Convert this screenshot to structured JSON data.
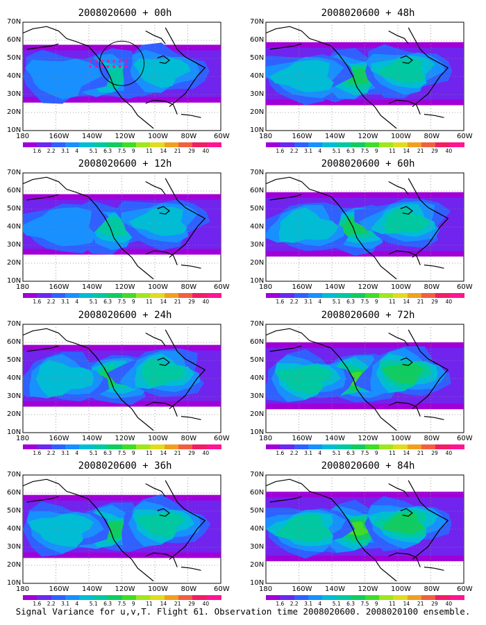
{
  "panels": [
    {
      "id": "p00",
      "title": "2008020600 + 00h",
      "intensity": 0.35
    },
    {
      "id": "p48",
      "title": "2008020600 + 48h",
      "intensity": 0.55
    },
    {
      "id": "p12",
      "title": "2008020600 + 12h",
      "intensity": 0.45
    },
    {
      "id": "p60",
      "title": "2008020600 + 60h",
      "intensity": 0.6
    },
    {
      "id": "p24",
      "title": "2008020600 + 24h",
      "intensity": 0.5
    },
    {
      "id": "p72",
      "title": "2008020600 + 72h",
      "intensity": 0.7
    },
    {
      "id": "p36",
      "title": "2008020600 + 36h",
      "intensity": 0.55
    },
    {
      "id": "p84",
      "title": "2008020600 + 84h",
      "intensity": 0.8
    }
  ],
  "lat_labels": [
    "70N",
    "60N",
    "50N",
    "40N",
    "30N",
    "20N",
    "10N"
  ],
  "lon_labels": [
    "180",
    "160W",
    "140W",
    "120W",
    "100W",
    "80W",
    "60W"
  ],
  "colorbar": {
    "labels": [
      "1.6",
      "2.2",
      "3.1",
      "4",
      "5.1",
      "6.3",
      "7.5",
      "9",
      "11",
      "14",
      "21",
      "29",
      "40"
    ],
    "colors": [
      "#a000d8",
      "#6c28f0",
      "#3060ff",
      "#1890ff",
      "#00bcd4",
      "#00c8a0",
      "#10cc60",
      "#40dc28",
      "#a0e61e",
      "#e0dc20",
      "#f0a020",
      "#f06040",
      "#f01e64",
      "#ff1493"
    ]
  },
  "caption": "Signal Variance for u,v,T. Flight 61. Observation time 2008020600. 2008020100 ensemble."
}
